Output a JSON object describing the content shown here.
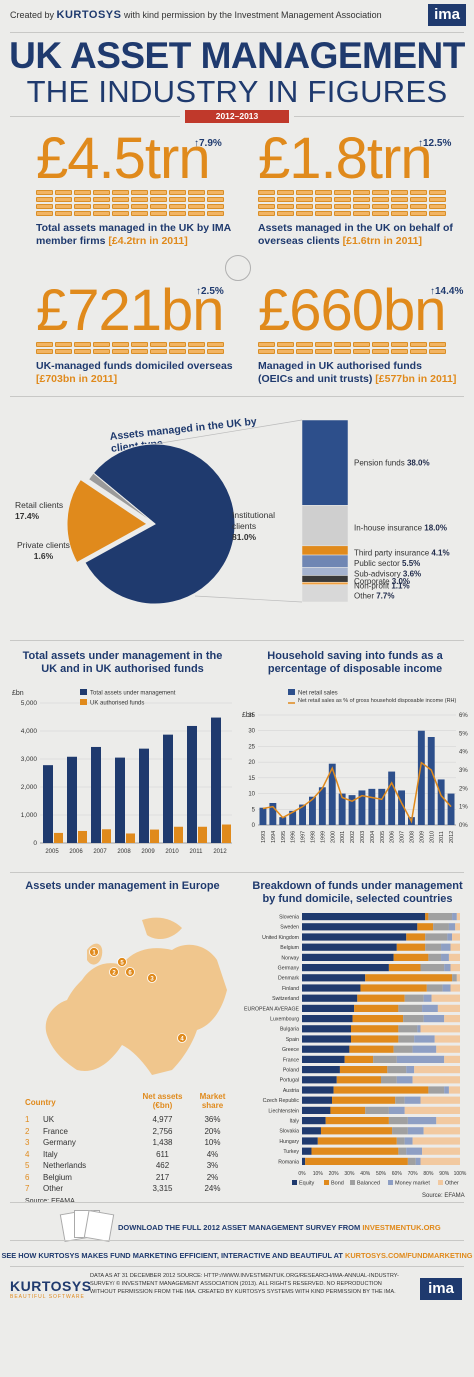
{
  "header": {
    "created_by": "Created by",
    "brand": "KURTOSYS",
    "permission": "with kind permission by the Investment Management Association",
    "ima_logo": "ima",
    "title_line1": "UK ASSET MANAGEMENT",
    "title_line2": "THE INDUSTRY IN FIGURES",
    "period": "2012–2013"
  },
  "stats": [
    {
      "value": "£4.5trn",
      "change": "7.9%",
      "desc": "Total assets managed in the UK by IMA member firms",
      "prev": "[£4.2trn in 2011]",
      "coin_rows": 4
    },
    {
      "value": "£1.8trn",
      "change": "12.5%",
      "desc": "Assets managed in the UK on behalf of overseas clients",
      "prev": "[£1.6trn in 2011]",
      "coin_rows": 4
    },
    {
      "value": "£721bn",
      "change": "2.5%",
      "desc": "UK-managed funds domiciled overseas",
      "prev": "[£703bn in 2011]",
      "coin_rows": 2
    },
    {
      "value": "£660bn",
      "change": "14.4%",
      "desc": "Managed in UK authorised funds (OEICs and unit trusts)",
      "prev": "[£577bn in 2011]",
      "coin_rows": 2
    }
  ],
  "colors": {
    "navy": "#1f3a6e",
    "orange": "#e08a1c",
    "grey": "#c8c8c8",
    "light_orange": "#f2c38c",
    "background": "#ececea"
  },
  "chart_data": [
    {
      "type": "pie",
      "title": "Assets managed in the UK by client type",
      "slices": [
        {
          "label": "Institutional clients",
          "value": 81.0,
          "display": "81.0%",
          "color": "#1f3a6e"
        },
        {
          "label": "Retail clients",
          "value": 17.4,
          "display": "17.4%",
          "color": "#e08a1c"
        },
        {
          "label": "Private clients",
          "value": 1.6,
          "display": "1.6%",
          "color": "#9a9a9a"
        }
      ],
      "breakdown": [
        {
          "label": "Pension funds",
          "value": 38.0,
          "display": "38.0%",
          "color": "#2d4f8b"
        },
        {
          "label": "In-house insurance",
          "value": 18.0,
          "display": "18.0%",
          "color": "#cfcfcf"
        },
        {
          "label": "Third party insurance",
          "value": 4.1,
          "display": "4.1%",
          "color": "#e08a1c"
        },
        {
          "label": "Public sector",
          "value": 5.5,
          "display": "5.5%",
          "color": "#6f86b3"
        },
        {
          "label": "Sub-advisory",
          "value": 3.6,
          "display": "3.6%",
          "color": "#a5b3cf"
        },
        {
          "label": "Corporate",
          "value": 3.0,
          "display": "3.0%",
          "color": "#3a3a3a"
        },
        {
          "label": "Non-profit",
          "value": 1.1,
          "display": "1.1%",
          "color": "#f0a040"
        },
        {
          "label": "Other",
          "value": 7.7,
          "display": "7.7%",
          "color": "#d8d8d8"
        }
      ]
    },
    {
      "type": "bar",
      "title": "Total assets under management in the UK and in UK authorised funds",
      "ylabel": "£bn",
      "categories": [
        "2005",
        "2006",
        "2007",
        "2008",
        "2009",
        "2010",
        "2011",
        "2012"
      ],
      "series": [
        {
          "name": "Total assets under management",
          "values": [
            2780,
            3080,
            3430,
            3050,
            3370,
            3870,
            4180,
            4480
          ],
          "color": "#1f3a6e"
        },
        {
          "name": "UK authorised funds",
          "values": [
            360,
            430,
            490,
            340,
            480,
            580,
            580,
            660
          ],
          "color": "#e08a1c"
        }
      ],
      "yticks": [
        "0",
        "1,000",
        "2,000",
        "3,000",
        "4,000",
        "5,000"
      ],
      "ylim": [
        0,
        5000
      ]
    },
    {
      "type": "bar",
      "title": "Household saving into funds as a percentage of disposable income",
      "ylabel": "£bn",
      "categories": [
        "1993",
        "1994",
        "1995",
        "1996",
        "1997",
        "1998",
        "1999",
        "2000",
        "2001",
        "2002",
        "2003",
        "2004",
        "2005",
        "2006",
        "2007",
        "2008",
        "2009",
        "2010",
        "2011",
        "2012"
      ],
      "series": [
        {
          "name": "Net retail sales",
          "values": [
            5.5,
            7.0,
            2.5,
            4.5,
            6.5,
            9.0,
            12.0,
            19.5,
            10.0,
            9.5,
            11.0,
            11.5,
            11.5,
            17.0,
            11.0,
            2.5,
            30.0,
            28.0,
            14.5,
            10.0
          ],
          "color": "#2d4f8b"
        },
        {
          "name": "Net retail sales as % of gross household disposable income (RH)",
          "values": [
            0.9,
            1.0,
            0.4,
            0.7,
            1.0,
            1.4,
            2.0,
            3.1,
            1.5,
            1.3,
            1.6,
            1.5,
            1.4,
            2.3,
            1.2,
            0.2,
            3.4,
            3.0,
            1.6,
            1.0
          ],
          "color": "#e08a1c"
        }
      ],
      "yticks_left": [
        "0",
        "5",
        "10",
        "15",
        "20",
        "25",
        "30",
        "35"
      ],
      "yticks_right": [
        "0%",
        "1%",
        "2%",
        "3%",
        "4%",
        "5%",
        "6%"
      ],
      "ylim": [
        0,
        35
      ],
      "y2lim": [
        0,
        6
      ]
    },
    {
      "type": "table",
      "title": "Assets under management in Europe",
      "columns": [
        "Country",
        "Net assets (€bn)",
        "Market share"
      ],
      "rows": [
        {
          "rank": "1",
          "country": "UK",
          "assets": "4,977",
          "share": "36%"
        },
        {
          "rank": "2",
          "country": "France",
          "assets": "2,756",
          "share": "20%"
        },
        {
          "rank": "3",
          "country": "Germany",
          "assets": "1,438",
          "share": "10%"
        },
        {
          "rank": "4",
          "country": "Italy",
          "assets": "611",
          "share": "4%"
        },
        {
          "rank": "5",
          "country": "Netherlands",
          "assets": "462",
          "share": "3%"
        },
        {
          "rank": "6",
          "country": "Belgium",
          "assets": "217",
          "share": "2%"
        },
        {
          "rank": "7",
          "country": "Other",
          "assets": "3,315",
          "share": "24%"
        }
      ],
      "source": "Source: EFAMA"
    },
    {
      "type": "bar",
      "title": "Breakdown of funds under management by fund domicile, selected countries",
      "categories": [
        "Slovenia",
        "Sweden",
        "United Kingdom",
        "Belgium",
        "Norway",
        "Germany",
        "Denmark",
        "Finland",
        "Switzerland",
        "EUROPEAN AVERAGE",
        "Luxembourg",
        "Bulgaria",
        "Spain",
        "Greece",
        "France",
        "Poland",
        "Portugal",
        "Austria",
        "Czech Republic",
        "Liechtenstein",
        "Italy",
        "Slovakia",
        "Hungary",
        "Turkey",
        "Romania"
      ],
      "series": [
        {
          "name": "Equity",
          "values": [
            78,
            73,
            66,
            60,
            58,
            55,
            40,
            37,
            35,
            33,
            32,
            31,
            31,
            30,
            27,
            24,
            22,
            20,
            19,
            18,
            15,
            12,
            10,
            6,
            2
          ],
          "color": "#1f3a6e"
        },
        {
          "name": "Bond",
          "values": [
            2,
            10,
            12,
            18,
            22,
            20,
            55,
            42,
            30,
            28,
            32,
            30,
            30,
            28,
            18,
            30,
            28,
            60,
            40,
            22,
            40,
            45,
            50,
            55,
            65
          ],
          "color": "#e08a1c"
        },
        {
          "name": "Balanced",
          "values": [
            15,
            10,
            14,
            10,
            8,
            15,
            3,
            10,
            12,
            15,
            13,
            12,
            10,
            12,
            15,
            12,
            10,
            10,
            6,
            15,
            12,
            10,
            5,
            5,
            5
          ],
          "color": "#a0a0a0"
        },
        {
          "name": "Money market",
          "values": [
            3,
            4,
            3,
            6,
            5,
            4,
            0,
            5,
            5,
            10,
            13,
            2,
            13,
            15,
            30,
            5,
            10,
            3,
            10,
            10,
            18,
            10,
            5,
            10,
            3
          ],
          "color": "#8e9fc4"
        },
        {
          "name": "Other",
          "values": [
            2,
            3,
            5,
            6,
            7,
            6,
            2,
            6,
            18,
            14,
            10,
            25,
            16,
            15,
            10,
            29,
            30,
            7,
            25,
            35,
            15,
            23,
            30,
            24,
            25
          ],
          "color": "#f2c9a0"
        }
      ],
      "xticks": [
        "0%",
        "10%",
        "20%",
        "30%",
        "40%",
        "50%",
        "60%",
        "70%",
        "80%",
        "90%",
        "100%"
      ],
      "source": "Source: EFAMA"
    }
  ],
  "map_markers": [
    "1",
    "2",
    "3",
    "4",
    "5",
    "6"
  ],
  "footer": {
    "download_text": "DOWNLOAD THE FULL 2012 ASSET MANAGEMENT SURVEY FROM",
    "download_link": "INVESTMENTUK.ORG",
    "see_text": "SEE HOW KURTOSYS MAKES FUND MARKETING EFFICIENT, INTERACTIVE AND BEAUTIFUL AT",
    "see_link": "KURTOSYS.COM/FUNDMARKETING",
    "brand": "KURTOSYS",
    "brand_sub": "BEAUTIFUL SOFTWARE",
    "fine_print": "DATA AS AT 31 DECEMBER 2012 SOURCE: HTTP://WWW.INVESTMENTUK.ORG/RESEARCH/IMA-ANNUAL-INDUSTRY-SURVEY/ © INVESTMENT MANAGEMENT ASSOCIATION (2013). ALL RIGHTS RESERVED. NO REPRODUCTION WITHOUT PERMISSION FROM THE IMA. CREATED BY KURTOSYS SYSTEMS WITH KIND PERMISSION BY THE IMA.",
    "ima_logo": "ima"
  }
}
